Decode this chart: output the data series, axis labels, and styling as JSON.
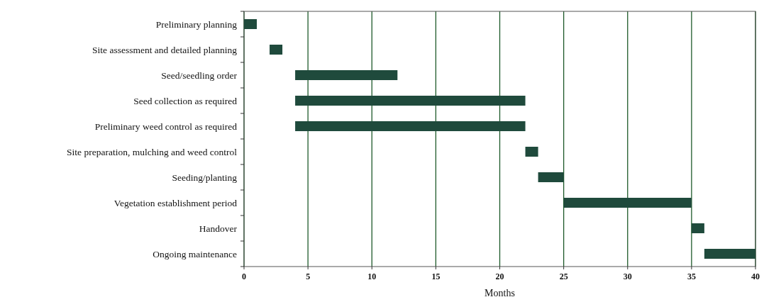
{
  "chart_data": {
    "type": "bar",
    "orientation": "horizontal",
    "xlabel": "Months",
    "categories": [
      "Preliminary planning",
      "Site assessment and detailed planning",
      "Seed/seedling order",
      "Seed collection as required",
      "Preliminary weed control as required",
      "Site preparation, mulching and weed control",
      "Seeding/planting",
      "Vegetation establishment period",
      "Handover",
      "Ongoing maintenance"
    ],
    "base": [
      0,
      2,
      4,
      4,
      4,
      22,
      23,
      25,
      35,
      36
    ],
    "values": [
      1,
      1,
      8,
      18,
      18,
      1,
      2,
      10,
      1,
      4
    ],
    "color": "#1f4a3c",
    "xlim": [
      0,
      40
    ],
    "xticks": [
      0,
      5,
      10,
      15,
      20,
      25,
      30,
      35,
      40
    ],
    "grid": "x"
  }
}
